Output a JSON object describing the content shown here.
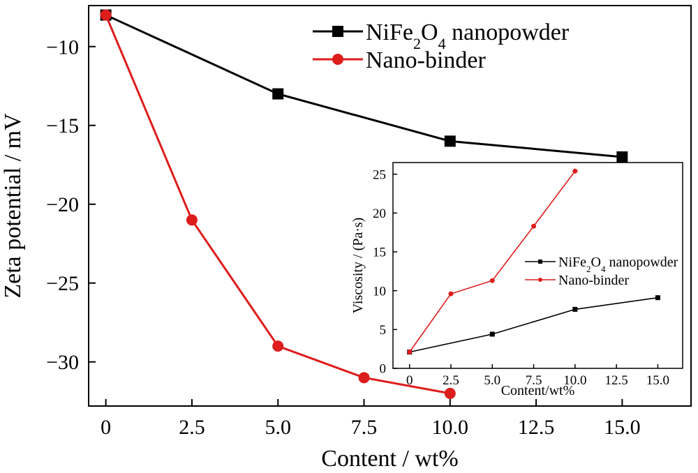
{
  "chart_data": [
    {
      "type": "line",
      "xlabel": "Content / wt%",
      "ylabel": "Zeta potential / mV",
      "xlim": [
        -0.5,
        17
      ],
      "ylim": [
        -32.8,
        -7.4
      ],
      "xticks": [
        "0",
        "2.5",
        "5.0",
        "7.5",
        "10.0",
        "12.5",
        "15.0"
      ],
      "xtick_values": [
        0,
        2.5,
        5,
        7.5,
        10,
        12.5,
        15
      ],
      "yticks": [
        "−10",
        "−15",
        "−20",
        "−25",
        "−30"
      ],
      "ytick_values": [
        -10,
        -15,
        -20,
        -25,
        -30
      ],
      "legend_position": "top-right",
      "series": [
        {
          "name_parts": [
            "NiFe",
            "2",
            "O",
            "4",
            " nanopowder"
          ],
          "marker": "square",
          "color": "#000000",
          "x": [
            0,
            5,
            10,
            15
          ],
          "y": [
            -8,
            -13,
            -16,
            -17
          ]
        },
        {
          "name_parts": [
            "Nano-binder"
          ],
          "marker": "circle",
          "color": "#dd1c1c",
          "x": [
            0,
            2.5,
            5,
            7.5,
            10
          ],
          "y": [
            -8,
            -21,
            -29,
            -31,
            -32
          ]
        }
      ]
    },
    {
      "type": "line",
      "inset": true,
      "xlabel": "Content/wt%",
      "ylabel": "Viscosity / (Pa·s)",
      "xlim": [
        -1,
        16.5
      ],
      "ylim": [
        0,
        26.5
      ],
      "xticks": [
        "0",
        "2.5",
        "5.0",
        "7.5",
        "10.0",
        "12.5",
        "15.0"
      ],
      "xtick_values": [
        0,
        2.5,
        5,
        7.5,
        10,
        12.5,
        15
      ],
      "yticks": [
        "0",
        "5",
        "10",
        "15",
        "20",
        "25"
      ],
      "ytick_values": [
        0,
        5,
        10,
        15,
        20,
        25
      ],
      "legend_position": "center-right",
      "series": [
        {
          "name_parts": [
            "NiFe",
            "2",
            "O",
            "4",
            " nanopowder"
          ],
          "marker": "square",
          "color": "#000000",
          "x": [
            0,
            5,
            10,
            15
          ],
          "y": [
            2.1,
            4.4,
            7.6,
            9.1
          ]
        },
        {
          "name_parts": [
            "Nano-binder"
          ],
          "marker": "circle",
          "color": "#dd1c1c",
          "x": [
            0,
            2.5,
            5,
            7.5,
            10
          ],
          "y": [
            2.1,
            9.6,
            11.3,
            18.3,
            25.4
          ]
        }
      ]
    }
  ]
}
